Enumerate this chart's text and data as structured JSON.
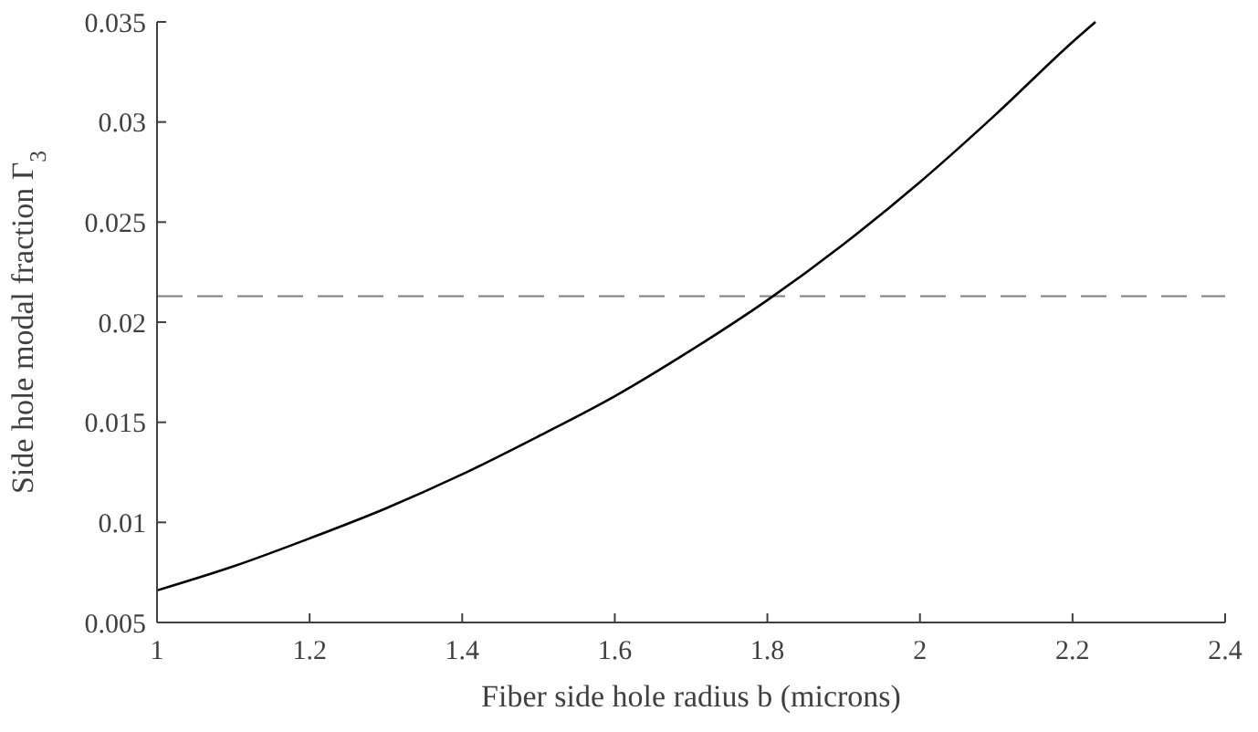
{
  "chart_data": {
    "type": "line",
    "xlabel": "Fiber side hole radius b (microns)",
    "ylabel": "Side hole modal fraction Γ$_{3}$",
    "series": [
      {
        "color": "#000000",
        "x": [
          1,
          1.1,
          1.2,
          1.3,
          1.4,
          1.5,
          1.6,
          1.7,
          1.8,
          1.9,
          2,
          2.1,
          2.2,
          2.23
        ],
        "values": [
          0.0066,
          0.0078,
          0.0092,
          0.0107,
          0.0124,
          0.0143,
          0.0163,
          0.0186,
          0.0211,
          0.0239,
          0.027,
          0.0304,
          0.034,
          0.035
        ]
      }
    ],
    "xlim": [
      1,
      2.4
    ],
    "xticks": [
      1,
      1.2,
      1.4,
      1.6,
      1.8,
      2,
      2.2,
      2.4
    ],
    "ylim": [
      0.005,
      0.035
    ],
    "yticks": [
      0.005,
      0.01,
      0.015,
      0.02,
      0.025,
      0.03,
      0.035
    ],
    "ref_lines": [
      {
        "axis": "y",
        "value": 0.0213,
        "color": "#808080",
        "line_style": "dashed"
      }
    ],
    "grid": false,
    "marker": "none",
    "line_style": "solid"
  }
}
